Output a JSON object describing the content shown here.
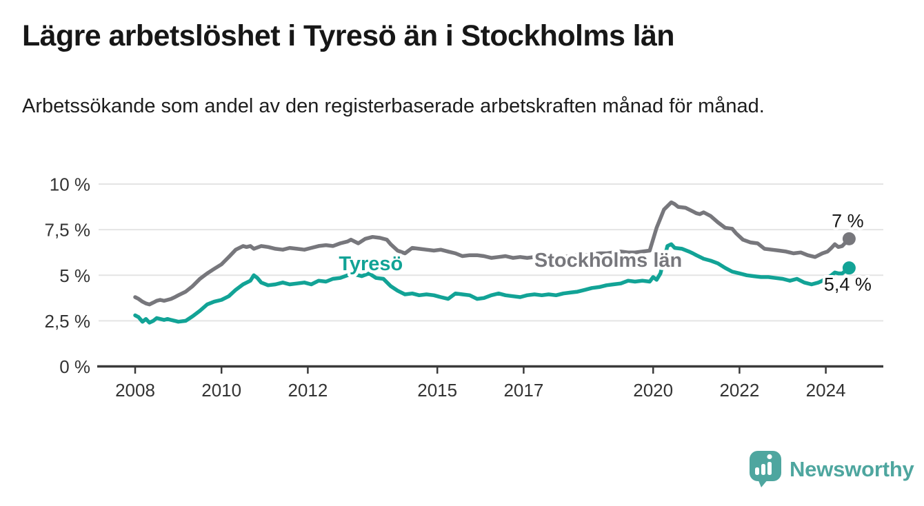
{
  "header": {
    "title": "Lägre arbetslöshet i Tyresö än i Stockholms län",
    "subtitle": "Arbetssökande som andel av den registerbaserade arbetskraften månad för månad."
  },
  "footer": {
    "brand": "Newsworthy",
    "logo_icon": "newsworthy-pin-barchart-icon"
  },
  "colors": {
    "tyreso_teal": "#12A396",
    "stockholm_gray": "#77777C",
    "gridline": "#E4E4E4",
    "axis": "#3A3A3A",
    "text": "#171717",
    "brand_teal": "#4EA69F"
  },
  "chart_data": {
    "type": "line",
    "title": "Lägre arbetslöshet i Tyresö än i Stockholms län",
    "subtitle": "Arbetssökande som andel av den registerbaserade arbetskraften månad för månad.",
    "xlabel": "",
    "ylabel": "",
    "ylim": [
      0,
      10
    ],
    "xlim": [
      2007.85,
      2025.35
    ],
    "grid": true,
    "legend_position": "inline-labels",
    "y_ticks": [
      {
        "value": 0,
        "label": "0 %"
      },
      {
        "value": 2.5,
        "label": "2,5 %"
      },
      {
        "value": 5,
        "label": "5 %"
      },
      {
        "value": 7.5,
        "label": "7,5 %"
      },
      {
        "value": 10,
        "label": "10 %"
      }
    ],
    "x_ticks": [
      {
        "year": 2008,
        "label": "2008"
      },
      {
        "year": 2010,
        "label": "2010"
      },
      {
        "year": 2012,
        "label": "2012"
      },
      {
        "year": 2015,
        "label": "2015"
      },
      {
        "year": 2017,
        "label": "2017"
      },
      {
        "year": 2020,
        "label": "2020"
      },
      {
        "year": 2022,
        "label": "2022"
      },
      {
        "year": 2024,
        "label": "2024"
      }
    ],
    "series": [
      {
        "name": "Stockholms län",
        "color": "#77777C",
        "end_label": "7 %",
        "end_label_side": "above",
        "label_pos": {
          "x": 2018.96,
          "y": 5.84
        },
        "points": [
          [
            2008.0,
            3.8
          ],
          [
            2008.08,
            3.7
          ],
          [
            2008.17,
            3.55
          ],
          [
            2008.25,
            3.45
          ],
          [
            2008.33,
            3.4
          ],
          [
            2008.42,
            3.5
          ],
          [
            2008.5,
            3.6
          ],
          [
            2008.58,
            3.65
          ],
          [
            2008.67,
            3.6
          ],
          [
            2008.75,
            3.65
          ],
          [
            2008.83,
            3.7
          ],
          [
            2008.92,
            3.8
          ],
          [
            2009.0,
            3.9
          ],
          [
            2009.17,
            4.1
          ],
          [
            2009.33,
            4.4
          ],
          [
            2009.5,
            4.8
          ],
          [
            2009.67,
            5.1
          ],
          [
            2009.83,
            5.35
          ],
          [
            2010.0,
            5.6
          ],
          [
            2010.17,
            6.0
          ],
          [
            2010.33,
            6.4
          ],
          [
            2010.5,
            6.6
          ],
          [
            2010.58,
            6.55
          ],
          [
            2010.67,
            6.6
          ],
          [
            2010.75,
            6.45
          ],
          [
            2010.92,
            6.6
          ],
          [
            2011.08,
            6.55
          ],
          [
            2011.25,
            6.45
          ],
          [
            2011.42,
            6.4
          ],
          [
            2011.58,
            6.5
          ],
          [
            2011.75,
            6.45
          ],
          [
            2011.92,
            6.4
          ],
          [
            2012.08,
            6.5
          ],
          [
            2012.25,
            6.6
          ],
          [
            2012.42,
            6.65
          ],
          [
            2012.58,
            6.6
          ],
          [
            2012.75,
            6.75
          ],
          [
            2012.92,
            6.85
          ],
          [
            2013.0,
            6.95
          ],
          [
            2013.17,
            6.75
          ],
          [
            2013.33,
            7.0
          ],
          [
            2013.5,
            7.1
          ],
          [
            2013.67,
            7.05
          ],
          [
            2013.83,
            6.95
          ],
          [
            2013.92,
            6.7
          ],
          [
            2014.08,
            6.35
          ],
          [
            2014.25,
            6.2
          ],
          [
            2014.42,
            6.5
          ],
          [
            2014.58,
            6.45
          ],
          [
            2014.75,
            6.4
          ],
          [
            2014.92,
            6.35
          ],
          [
            2015.08,
            6.4
          ],
          [
            2015.25,
            6.3
          ],
          [
            2015.42,
            6.2
          ],
          [
            2015.58,
            6.05
          ],
          [
            2015.75,
            6.1
          ],
          [
            2015.92,
            6.1
          ],
          [
            2016.08,
            6.05
          ],
          [
            2016.25,
            5.95
          ],
          [
            2016.42,
            6.0
          ],
          [
            2016.58,
            6.05
          ],
          [
            2016.75,
            5.95
          ],
          [
            2016.92,
            6.0
          ],
          [
            2017.08,
            5.95
          ],
          [
            2017.25,
            6.0
          ],
          [
            2017.42,
            5.95
          ],
          [
            2017.58,
            6.0
          ],
          [
            2017.75,
            5.95
          ],
          [
            2017.92,
            6.0
          ],
          [
            2018.08,
            6.05
          ],
          [
            2018.25,
            6.1
          ],
          [
            2018.42,
            6.1
          ],
          [
            2018.58,
            6.15
          ],
          [
            2018.75,
            6.2
          ],
          [
            2018.92,
            6.2
          ],
          [
            2019.08,
            6.25
          ],
          [
            2019.25,
            6.3
          ],
          [
            2019.42,
            6.25
          ],
          [
            2019.58,
            6.25
          ],
          [
            2019.75,
            6.3
          ],
          [
            2019.92,
            6.35
          ],
          [
            2020.08,
            7.6
          ],
          [
            2020.25,
            8.6
          ],
          [
            2020.42,
            9.0
          ],
          [
            2020.5,
            8.9
          ],
          [
            2020.58,
            8.75
          ],
          [
            2020.75,
            8.7
          ],
          [
            2020.92,
            8.5
          ],
          [
            2021.0,
            8.4
          ],
          [
            2021.08,
            8.35
          ],
          [
            2021.17,
            8.45
          ],
          [
            2021.33,
            8.25
          ],
          [
            2021.5,
            7.9
          ],
          [
            2021.67,
            7.6
          ],
          [
            2021.83,
            7.55
          ],
          [
            2021.92,
            7.3
          ],
          [
            2022.08,
            6.95
          ],
          [
            2022.25,
            6.8
          ],
          [
            2022.42,
            6.75
          ],
          [
            2022.58,
            6.45
          ],
          [
            2022.75,
            6.4
          ],
          [
            2022.92,
            6.35
          ],
          [
            2023.08,
            6.3
          ],
          [
            2023.25,
            6.2
          ],
          [
            2023.42,
            6.25
          ],
          [
            2023.58,
            6.1
          ],
          [
            2023.75,
            6.0
          ],
          [
            2023.92,
            6.2
          ],
          [
            2024.04,
            6.3
          ],
          [
            2024.13,
            6.5
          ],
          [
            2024.21,
            6.7
          ],
          [
            2024.29,
            6.55
          ],
          [
            2024.38,
            6.6
          ],
          [
            2024.46,
            6.8
          ],
          [
            2024.54,
            7.0
          ]
        ]
      },
      {
        "name": "Tyresö",
        "color": "#12A396",
        "end_label": "5,4 %",
        "end_label_side": "below",
        "label_pos": {
          "x": 2013.46,
          "y": 5.65
        },
        "points": [
          [
            2008.0,
            2.8
          ],
          [
            2008.08,
            2.7
          ],
          [
            2008.17,
            2.45
          ],
          [
            2008.25,
            2.6
          ],
          [
            2008.33,
            2.4
          ],
          [
            2008.42,
            2.5
          ],
          [
            2008.5,
            2.65
          ],
          [
            2008.58,
            2.6
          ],
          [
            2008.67,
            2.55
          ],
          [
            2008.75,
            2.6
          ],
          [
            2008.83,
            2.55
          ],
          [
            2008.92,
            2.5
          ],
          [
            2009.0,
            2.45
          ],
          [
            2009.17,
            2.5
          ],
          [
            2009.33,
            2.75
          ],
          [
            2009.5,
            3.05
          ],
          [
            2009.67,
            3.4
          ],
          [
            2009.83,
            3.55
          ],
          [
            2010.0,
            3.65
          ],
          [
            2010.17,
            3.85
          ],
          [
            2010.33,
            4.2
          ],
          [
            2010.5,
            4.5
          ],
          [
            2010.67,
            4.7
          ],
          [
            2010.75,
            5.0
          ],
          [
            2010.83,
            4.85
          ],
          [
            2010.92,
            4.6
          ],
          [
            2011.08,
            4.45
          ],
          [
            2011.25,
            4.5
          ],
          [
            2011.42,
            4.6
          ],
          [
            2011.58,
            4.5
          ],
          [
            2011.75,
            4.55
          ],
          [
            2011.92,
            4.6
          ],
          [
            2012.08,
            4.5
          ],
          [
            2012.25,
            4.7
          ],
          [
            2012.42,
            4.65
          ],
          [
            2012.58,
            4.8
          ],
          [
            2012.75,
            4.85
          ],
          [
            2012.92,
            5.0
          ],
          [
            2013.08,
            5.05
          ],
          [
            2013.25,
            4.95
          ],
          [
            2013.42,
            5.1
          ],
          [
            2013.58,
            4.85
          ],
          [
            2013.75,
            4.8
          ],
          [
            2013.92,
            4.4
          ],
          [
            2014.08,
            4.15
          ],
          [
            2014.25,
            3.95
          ],
          [
            2014.42,
            4.0
          ],
          [
            2014.58,
            3.9
          ],
          [
            2014.75,
            3.95
          ],
          [
            2014.92,
            3.9
          ],
          [
            2015.08,
            3.8
          ],
          [
            2015.25,
            3.7
          ],
          [
            2015.42,
            4.0
          ],
          [
            2015.58,
            3.95
          ],
          [
            2015.75,
            3.9
          ],
          [
            2015.92,
            3.7
          ],
          [
            2016.08,
            3.75
          ],
          [
            2016.25,
            3.9
          ],
          [
            2016.42,
            4.0
          ],
          [
            2016.58,
            3.9
          ],
          [
            2016.75,
            3.85
          ],
          [
            2016.92,
            3.8
          ],
          [
            2017.08,
            3.9
          ],
          [
            2017.25,
            3.95
          ],
          [
            2017.42,
            3.9
          ],
          [
            2017.58,
            3.95
          ],
          [
            2017.75,
            3.9
          ],
          [
            2017.92,
            4.0
          ],
          [
            2018.08,
            4.05
          ],
          [
            2018.25,
            4.1
          ],
          [
            2018.42,
            4.2
          ],
          [
            2018.58,
            4.3
          ],
          [
            2018.75,
            4.35
          ],
          [
            2018.92,
            4.45
          ],
          [
            2019.08,
            4.5
          ],
          [
            2019.25,
            4.55
          ],
          [
            2019.42,
            4.7
          ],
          [
            2019.58,
            4.65
          ],
          [
            2019.75,
            4.7
          ],
          [
            2019.92,
            4.65
          ],
          [
            2020.0,
            4.9
          ],
          [
            2020.08,
            4.75
          ],
          [
            2020.17,
            5.1
          ],
          [
            2020.33,
            6.6
          ],
          [
            2020.42,
            6.7
          ],
          [
            2020.5,
            6.5
          ],
          [
            2020.67,
            6.45
          ],
          [
            2020.83,
            6.3
          ],
          [
            2020.92,
            6.2
          ],
          [
            2021.0,
            6.1
          ],
          [
            2021.17,
            5.9
          ],
          [
            2021.33,
            5.8
          ],
          [
            2021.5,
            5.65
          ],
          [
            2021.67,
            5.4
          ],
          [
            2021.83,
            5.2
          ],
          [
            2022.0,
            5.1
          ],
          [
            2022.17,
            5.0
          ],
          [
            2022.33,
            4.95
          ],
          [
            2022.5,
            4.9
          ],
          [
            2022.67,
            4.9
          ],
          [
            2022.83,
            4.85
          ],
          [
            2023.0,
            4.8
          ],
          [
            2023.17,
            4.7
          ],
          [
            2023.33,
            4.8
          ],
          [
            2023.5,
            4.6
          ],
          [
            2023.67,
            4.5
          ],
          [
            2023.83,
            4.6
          ],
          [
            2023.92,
            4.7
          ],
          [
            2024.04,
            4.85
          ],
          [
            2024.13,
            5.0
          ],
          [
            2024.21,
            5.15
          ],
          [
            2024.29,
            5.1
          ],
          [
            2024.38,
            5.1
          ],
          [
            2024.46,
            5.25
          ],
          [
            2024.54,
            5.4
          ]
        ]
      }
    ]
  }
}
